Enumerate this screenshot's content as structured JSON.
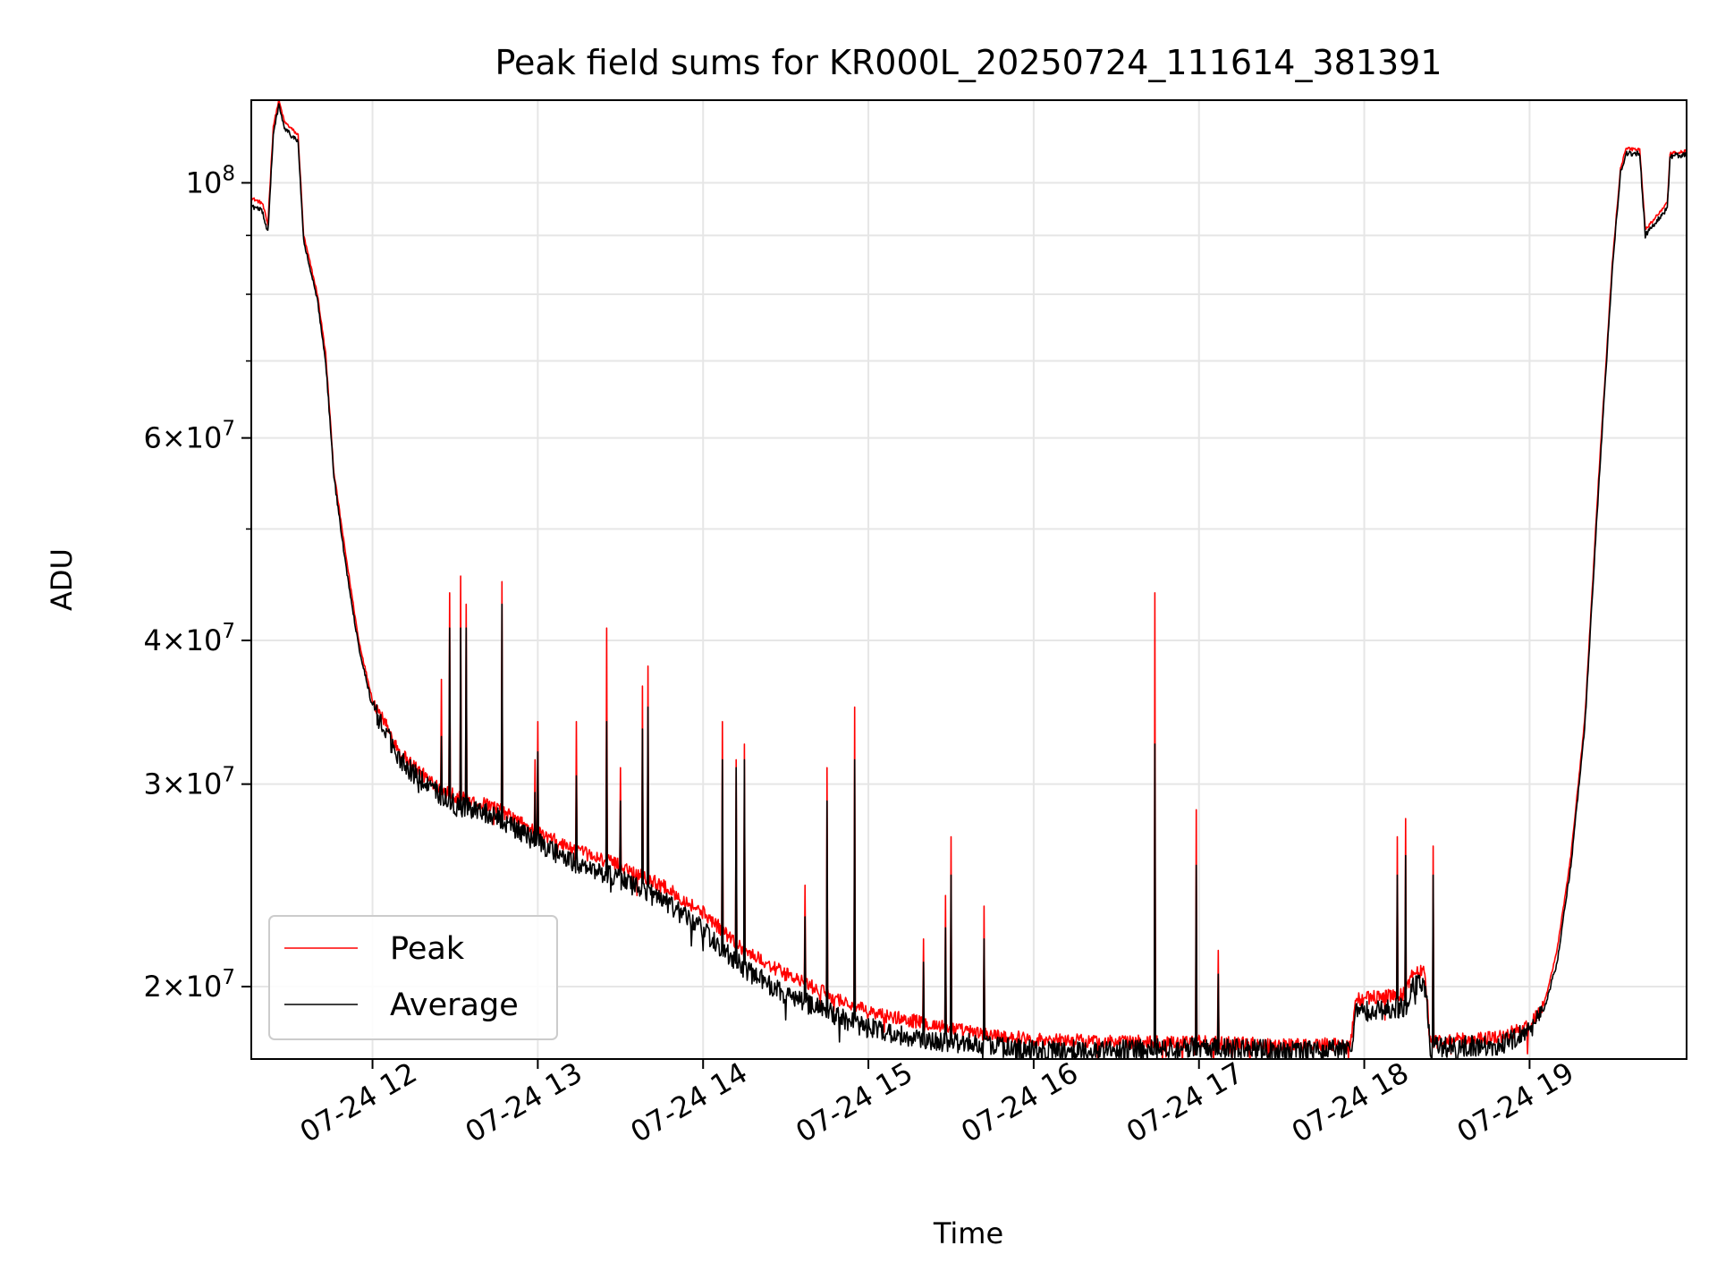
{
  "chart_data": {
    "type": "line",
    "title": "Peak field sums for KR000L_20250724_111614_381391",
    "xlabel": "Time",
    "ylabel": "ADU",
    "yscale": "log",
    "ylim": [
      17300000,
      118000000
    ],
    "xlim": [
      "2025-07-24 11:16",
      "2025-07-24 19:57"
    ],
    "grid": true,
    "legend_position": "lower-left",
    "x_tick_labels": [
      "07-24 12",
      "07-24 13",
      "07-24 14",
      "07-24 15",
      "07-24 16",
      "07-24 17",
      "07-24 18",
      "07-24 19"
    ],
    "x_ticks": [
      "2025-07-24 12:00",
      "2025-07-24 13:00",
      "2025-07-24 14:00",
      "2025-07-24 15:00",
      "2025-07-24 16:00",
      "2025-07-24 17:00",
      "2025-07-24 18:00",
      "2025-07-24 19:00"
    ],
    "y_major_ticks": [
      {
        "value": 100000000,
        "mantissa": "",
        "base": "10",
        "exp": "8"
      },
      {
        "value": 60000000,
        "mantissa": "6",
        "base": "10",
        "exp": "7"
      },
      {
        "value": 40000000,
        "mantissa": "4",
        "base": "10",
        "exp": "7"
      },
      {
        "value": 30000000,
        "mantissa": "3",
        "base": "10",
        "exp": "7"
      },
      {
        "value": 20000000,
        "mantissa": "2",
        "base": "10",
        "exp": "7"
      }
    ],
    "y_minor_ticks": [
      90000000,
      80000000,
      70000000,
      50000000
    ],
    "series": [
      {
        "name": "Peak",
        "color": "#ff0000",
        "baseline": [
          [
            "2025-07-24 11:16",
            97000000
          ],
          [
            "2025-07-24 11:20",
            96000000
          ],
          [
            "2025-07-24 11:22",
            92000000
          ],
          [
            "2025-07-24 11:24",
            112000000
          ],
          [
            "2025-07-24 11:26",
            118000000
          ],
          [
            "2025-07-24 11:28",
            113000000
          ],
          [
            "2025-07-24 11:33",
            110000000
          ],
          [
            "2025-07-24 11:35",
            90000000
          ],
          [
            "2025-07-24 11:40",
            80000000
          ],
          [
            "2025-07-24 11:43",
            71000000
          ],
          [
            "2025-07-24 11:46",
            56000000
          ],
          [
            "2025-07-24 11:50",
            48000000
          ],
          [
            "2025-07-24 11:55",
            40000000
          ],
          [
            "2025-07-24 12:00",
            35500000
          ],
          [
            "2025-07-24 12:10",
            32000000
          ],
          [
            "2025-07-24 12:20",
            30300000
          ],
          [
            "2025-07-24 12:30",
            29300000
          ],
          [
            "2025-07-24 12:45",
            28600000
          ],
          [
            "2025-07-24 13:00",
            27200000
          ],
          [
            "2025-07-24 13:15",
            26200000
          ],
          [
            "2025-07-24 13:30",
            25500000
          ],
          [
            "2025-07-24 13:45",
            24500000
          ],
          [
            "2025-07-24 14:00",
            23200000
          ],
          [
            "2025-07-24 14:15",
            21500000
          ],
          [
            "2025-07-24 14:30",
            20500000
          ],
          [
            "2025-07-24 14:45",
            19700000
          ],
          [
            "2025-07-24 15:00",
            19000000
          ],
          [
            "2025-07-24 15:20",
            18600000
          ],
          [
            "2025-07-24 15:40",
            18200000
          ],
          [
            "2025-07-24 16:00",
            18000000
          ],
          [
            "2025-07-24 16:30",
            17900000
          ],
          [
            "2025-07-24 17:00",
            17900000
          ],
          [
            "2025-07-24 17:30",
            17800000
          ],
          [
            "2025-07-24 17:55",
            17800000
          ],
          [
            "2025-07-24 17:57",
            19500000
          ],
          [
            "2025-07-24 18:15",
            19700000
          ],
          [
            "2025-07-24 18:17",
            20500000
          ],
          [
            "2025-07-24 18:22",
            20700000
          ],
          [
            "2025-07-24 18:24",
            17900000
          ],
          [
            "2025-07-24 18:50",
            18100000
          ],
          [
            "2025-07-24 19:00",
            18500000
          ],
          [
            "2025-07-24 19:05",
            19200000
          ],
          [
            "2025-07-24 19:10",
            21500000
          ],
          [
            "2025-07-24 19:15",
            26000000
          ],
          [
            "2025-07-24 19:20",
            34000000
          ],
          [
            "2025-07-24 19:25",
            55000000
          ],
          [
            "2025-07-24 19:30",
            85000000
          ],
          [
            "2025-07-24 19:33",
            103000000
          ],
          [
            "2025-07-24 19:35",
            107000000
          ],
          [
            "2025-07-24 19:40",
            107000000
          ],
          [
            "2025-07-24 19:42",
            91000000
          ],
          [
            "2025-07-24 19:50",
            96000000
          ],
          [
            "2025-07-24 19:51",
            106000000
          ],
          [
            "2025-07-24 19:57",
            106500000
          ]
        ],
        "spikes": [
          [
            "2025-07-24 12:10",
            31500000
          ],
          [
            "2025-07-24 12:25",
            37000000
          ],
          [
            "2025-07-24 12:28",
            44000000
          ],
          [
            "2025-07-24 12:32",
            45500000
          ],
          [
            "2025-07-24 12:34",
            43000000
          ],
          [
            "2025-07-24 12:47",
            45000000
          ],
          [
            "2025-07-24 12:59",
            31500000
          ],
          [
            "2025-07-24 13:00",
            34000000
          ],
          [
            "2025-07-24 13:14",
            34000000
          ],
          [
            "2025-07-24 13:25",
            41000000
          ],
          [
            "2025-07-24 13:30",
            31000000
          ],
          [
            "2025-07-24 13:38",
            36500000
          ],
          [
            "2025-07-24 13:40",
            38000000
          ],
          [
            "2025-07-24 14:07",
            34000000
          ],
          [
            "2025-07-24 14:12",
            31500000
          ],
          [
            "2025-07-24 14:15",
            32500000
          ],
          [
            "2025-07-24 14:37",
            24500000
          ],
          [
            "2025-07-24 14:45",
            31000000
          ],
          [
            "2025-07-24 14:55",
            35000000
          ],
          [
            "2025-07-24 15:20",
            22000000
          ],
          [
            "2025-07-24 15:28",
            24000000
          ],
          [
            "2025-07-24 15:30",
            27000000
          ],
          [
            "2025-07-24 15:42",
            23500000
          ],
          [
            "2025-07-24 16:44",
            44000000
          ],
          [
            "2025-07-24 16:59",
            28500000
          ],
          [
            "2025-07-24 17:07",
            21500000
          ],
          [
            "2025-07-24 18:12",
            27000000
          ],
          [
            "2025-07-24 18:15",
            28000000
          ],
          [
            "2025-07-24 18:25",
            26500000
          ]
        ]
      },
      {
        "name": "Average",
        "color": "#000000",
        "baseline": [
          [
            "2025-07-24 11:16",
            95500000
          ],
          [
            "2025-07-24 11:20",
            94500000
          ],
          [
            "2025-07-24 11:22",
            90500000
          ],
          [
            "2025-07-24 11:24",
            110000000
          ],
          [
            "2025-07-24 11:26",
            117000000
          ],
          [
            "2025-07-24 11:28",
            111500000
          ],
          [
            "2025-07-24 11:33",
            108500000
          ],
          [
            "2025-07-24 11:35",
            89000000
          ],
          [
            "2025-07-24 11:40",
            79000000
          ],
          [
            "2025-07-24 11:43",
            70000000
          ],
          [
            "2025-07-24 11:46",
            55500000
          ],
          [
            "2025-07-24 11:50",
            47000000
          ],
          [
            "2025-07-24 11:55",
            39500000
          ],
          [
            "2025-07-24 12:00",
            35000000
          ],
          [
            "2025-07-24 12:10",
            31500000
          ],
          [
            "2025-07-24 12:20",
            29800000
          ],
          [
            "2025-07-24 12:30",
            28800000
          ],
          [
            "2025-07-24 12:45",
            28100000
          ],
          [
            "2025-07-24 13:00",
            26700000
          ],
          [
            "2025-07-24 13:15",
            25500000
          ],
          [
            "2025-07-24 13:30",
            24800000
          ],
          [
            "2025-07-24 13:45",
            23800000
          ],
          [
            "2025-07-24 14:00",
            22400000
          ],
          [
            "2025-07-24 14:15",
            20700000
          ],
          [
            "2025-07-24 14:30",
            19700000
          ],
          [
            "2025-07-24 14:45",
            19000000
          ],
          [
            "2025-07-24 15:00",
            18400000
          ],
          [
            "2025-07-24 15:20",
            18000000
          ],
          [
            "2025-07-24 15:40",
            17800000
          ],
          [
            "2025-07-24 16:00",
            17600000
          ],
          [
            "2025-07-24 16:30",
            17600000
          ],
          [
            "2025-07-24 17:00",
            17700000
          ],
          [
            "2025-07-24 17:30",
            17600000
          ],
          [
            "2025-07-24 17:55",
            17600000
          ],
          [
            "2025-07-24 17:57",
            19000000
          ],
          [
            "2025-07-24 18:15",
            19200000
          ],
          [
            "2025-07-24 18:17",
            20000000
          ],
          [
            "2025-07-24 18:22",
            20200000
          ],
          [
            "2025-07-24 18:24",
            17700000
          ],
          [
            "2025-07-24 18:50",
            17800000
          ],
          [
            "2025-07-24 19:00",
            18300000
          ],
          [
            "2025-07-24 19:05",
            19000000
          ],
          [
            "2025-07-24 19:10",
            21000000
          ],
          [
            "2025-07-24 19:15",
            25500000
          ],
          [
            "2025-07-24 19:20",
            33500000
          ],
          [
            "2025-07-24 19:25",
            54000000
          ],
          [
            "2025-07-24 19:30",
            84000000
          ],
          [
            "2025-07-24 19:33",
            102000000
          ],
          [
            "2025-07-24 19:35",
            106000000
          ],
          [
            "2025-07-24 19:40",
            106000000
          ],
          [
            "2025-07-24 19:42",
            90000000
          ],
          [
            "2025-07-24 19:50",
            95000000
          ],
          [
            "2025-07-24 19:51",
            105500000
          ],
          [
            "2025-07-24 19:57",
            105800000
          ]
        ],
        "spikes": [
          [
            "2025-07-24 12:10",
            31000000
          ],
          [
            "2025-07-24 12:25",
            33000000
          ],
          [
            "2025-07-24 12:28",
            41000000
          ],
          [
            "2025-07-24 12:32",
            41000000
          ],
          [
            "2025-07-24 12:34",
            41000000
          ],
          [
            "2025-07-24 12:47",
            43000000
          ],
          [
            "2025-07-24 12:59",
            29500000
          ],
          [
            "2025-07-24 13:00",
            32000000
          ],
          [
            "2025-07-24 13:14",
            30500000
          ],
          [
            "2025-07-24 13:25",
            34000000
          ],
          [
            "2025-07-24 13:30",
            29000000
          ],
          [
            "2025-07-24 13:38",
            33500000
          ],
          [
            "2025-07-24 13:40",
            35000000
          ],
          [
            "2025-07-24 14:07",
            31500000
          ],
          [
            "2025-07-24 14:12",
            31000000
          ],
          [
            "2025-07-24 14:15",
            31500000
          ],
          [
            "2025-07-24 14:37",
            23000000
          ],
          [
            "2025-07-24 14:45",
            29000000
          ],
          [
            "2025-07-24 14:55",
            31500000
          ],
          [
            "2025-07-24 15:20",
            21000000
          ],
          [
            "2025-07-24 15:28",
            22500000
          ],
          [
            "2025-07-24 15:30",
            25000000
          ],
          [
            "2025-07-24 15:42",
            22000000
          ],
          [
            "2025-07-24 16:44",
            32500000
          ],
          [
            "2025-07-24 16:59",
            25500000
          ],
          [
            "2025-07-24 17:07",
            20500000
          ],
          [
            "2025-07-24 18:12",
            25000000
          ],
          [
            "2025-07-24 18:15",
            26000000
          ],
          [
            "2025-07-24 18:25",
            25000000
          ]
        ]
      }
    ]
  }
}
